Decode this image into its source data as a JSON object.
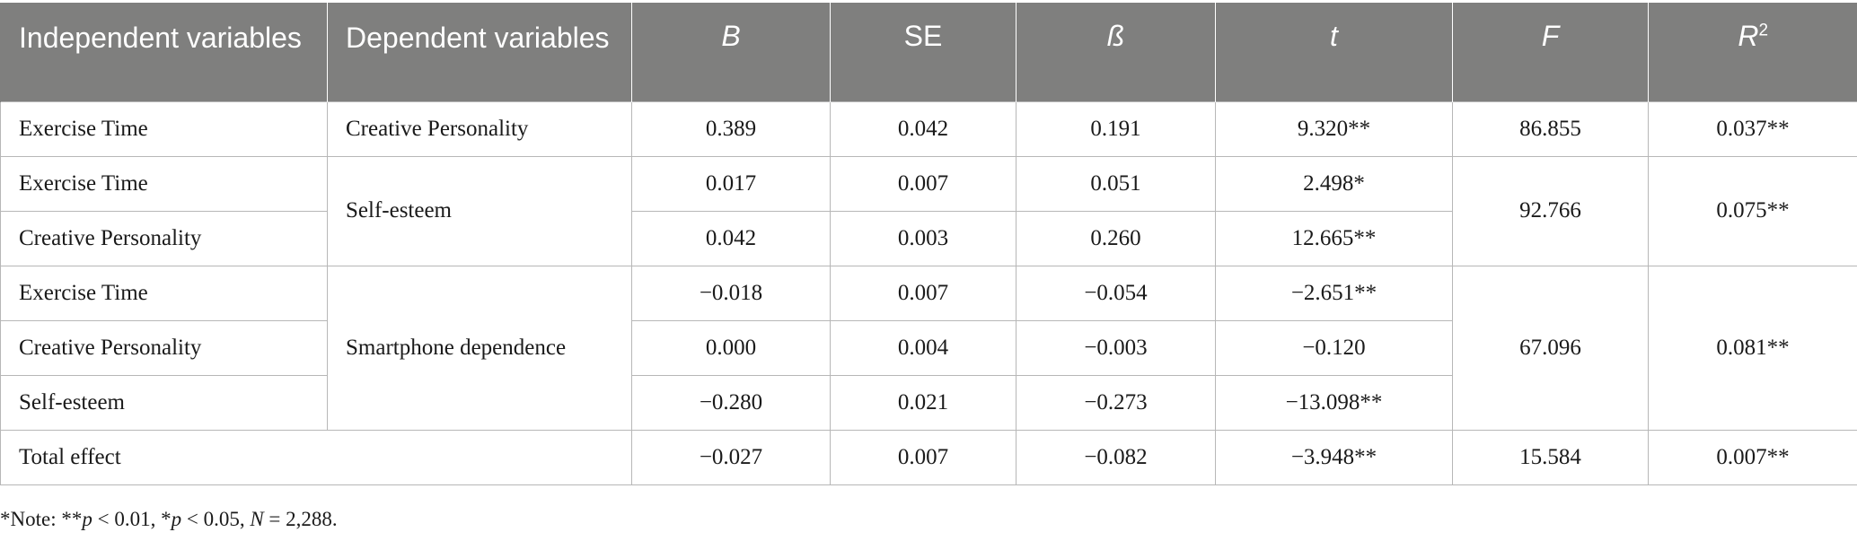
{
  "headers": {
    "independent": "Independent variables",
    "dependent": "Dependent variables",
    "b": "B",
    "se": "SE",
    "beta": "ß",
    "t": "t",
    "f": "F",
    "r2_base": "R",
    "r2_sup": "2"
  },
  "groups": {
    "g1": {
      "dependent": "Creative Personality",
      "f": "86.855",
      "r2": "0.037**",
      "rows": [
        {
          "iv": "Exercise Time",
          "b": "0.389",
          "se": "0.042",
          "beta": "0.191",
          "t": "9.320**"
        }
      ]
    },
    "g2": {
      "dependent": "Self-esteem",
      "f": "92.766",
      "r2": "0.075**",
      "rows": [
        {
          "iv": "Exercise Time",
          "b": "0.017",
          "se": "0.007",
          "beta": "0.051",
          "t": "2.498*"
        },
        {
          "iv": "Creative Personality",
          "b": "0.042",
          "se": "0.003",
          "beta": "0.260",
          "t": "12.665**"
        }
      ]
    },
    "g3": {
      "dependent": "Smartphone dependence",
      "f": "67.096",
      "r2": "0.081**",
      "rows": [
        {
          "iv": "Exercise Time",
          "b": "−0.018",
          "se": "0.007",
          "beta": "−0.054",
          "t": "−2.651**"
        },
        {
          "iv": "Creative Personality",
          "b": "0.000",
          "se": "0.004",
          "beta": "−0.003",
          "t": "−0.120"
        },
        {
          "iv": "Self-esteem",
          "b": "−0.280",
          "se": "0.021",
          "beta": "−0.273",
          "t": "−13.098**"
        }
      ]
    },
    "total": {
      "label": "Total effect",
      "b": "−0.027",
      "se": "0.007",
      "beta": "−0.082",
      "t": "−3.948**",
      "f": "15.584",
      "r2": "0.007**"
    }
  },
  "note": {
    "prefix": "*Note: **",
    "p1": "p",
    "mid1": " < 0.01, *",
    "p2": "p",
    "mid2": " < 0.05, ",
    "n": "N",
    "suffix": " = 2,288."
  }
}
